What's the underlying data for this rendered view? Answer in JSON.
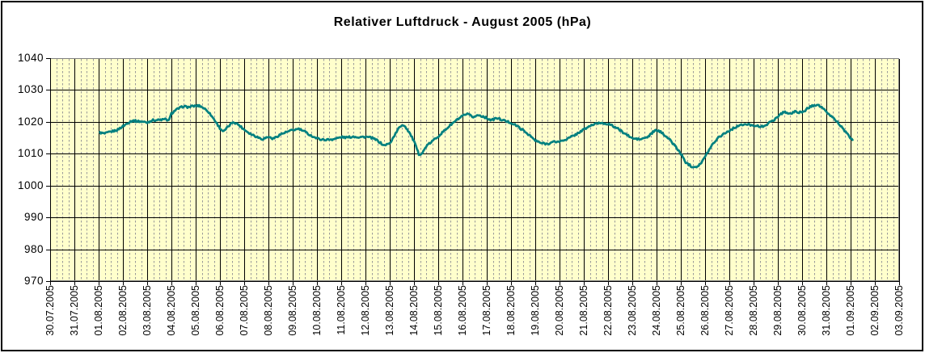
{
  "chart_data": {
    "type": "line",
    "title": "Relativer Luftdruck - August 2005 (hPa)",
    "xlabel": "",
    "ylabel": "",
    "ylim": [
      970,
      1040
    ],
    "y_ticks": [
      1040,
      1030,
      1020,
      1010,
      1000,
      990,
      980,
      970
    ],
    "x_tick_labels": [
      "30.07.2005",
      "31.07.2005",
      "01.08.2005",
      "02.08.2005",
      "03.08.2005",
      "04.08.2005",
      "05.08.2005",
      "06.08.2005",
      "07.08.2005",
      "08.08.2005",
      "09.08.2005",
      "10.08.2005",
      "11.08.2005",
      "12.08.2005",
      "13.08.2005",
      "14.08.2005",
      "15.08.2005",
      "16.08.2005",
      "17.08.2005",
      "18.08.2005",
      "19.08.2005",
      "20.08.2005",
      "21.08.2005",
      "22.08.2005",
      "23.08.2005",
      "24.08.2005",
      "25.08.2005",
      "26.08.2005",
      "27.08.2005",
      "28.08.2005",
      "29.08.2005",
      "30.08.2005",
      "31.08.2005",
      "01.09.2005",
      "02.09.2005",
      "03.09.2005"
    ],
    "x_minor_divisions_per_day": 4,
    "grid": "on",
    "legend": "none",
    "series": [
      {
        "name": "Relativer Luftdruck (hPa)",
        "color": "#008080",
        "x_unit": "day of August 2005 (decimal, 1.0 = 01.08.2005 00:00)",
        "visual_noise_hpa": 0.3,
        "points": [
          [
            1.05,
            1016.6
          ],
          [
            1.25,
            1016.3
          ],
          [
            1.5,
            1016.9
          ],
          [
            1.75,
            1017.4
          ],
          [
            2,
            1018.6
          ],
          [
            2.25,
            1019.9
          ],
          [
            2.4,
            1020.4
          ],
          [
            2.6,
            1020.2
          ],
          [
            2.75,
            1020.1
          ],
          [
            3,
            1019.8
          ],
          [
            3.2,
            1020.5
          ],
          [
            3.5,
            1020.6
          ],
          [
            3.75,
            1020.8
          ],
          [
            3.9,
            1020.4
          ],
          [
            4,
            1022.6
          ],
          [
            4.15,
            1023.6
          ],
          [
            4.3,
            1024.2
          ],
          [
            4.5,
            1024.9
          ],
          [
            4.7,
            1024.6
          ],
          [
            4.85,
            1024.9
          ],
          [
            5,
            1025
          ],
          [
            5.15,
            1025.1
          ],
          [
            5.3,
            1024.5
          ],
          [
            5.5,
            1023.4
          ],
          [
            5.75,
            1020.9
          ],
          [
            6,
            1018
          ],
          [
            6.15,
            1016.9
          ],
          [
            6.35,
            1018.6
          ],
          [
            6.55,
            1020
          ],
          [
            6.75,
            1019.2
          ],
          [
            7,
            1017.6
          ],
          [
            7.25,
            1016.3
          ],
          [
            7.5,
            1015.4
          ],
          [
            7.75,
            1014.6
          ],
          [
            8,
            1015.3
          ],
          [
            8.2,
            1014.7
          ],
          [
            8.5,
            1016.1
          ],
          [
            8.75,
            1016.8
          ],
          [
            9,
            1017.4
          ],
          [
            9.25,
            1017.8
          ],
          [
            9.5,
            1016.9
          ],
          [
            9.75,
            1015.7
          ],
          [
            10,
            1014.8
          ],
          [
            10.25,
            1014.4
          ],
          [
            10.5,
            1014.4
          ],
          [
            10.75,
            1014.7
          ],
          [
            11,
            1015.2
          ],
          [
            11.25,
            1015.1
          ],
          [
            11.5,
            1015.4
          ],
          [
            11.75,
            1015.2
          ],
          [
            12,
            1015.3
          ],
          [
            12.25,
            1015
          ],
          [
            12.5,
            1014.1
          ],
          [
            12.75,
            1012.6
          ],
          [
            13,
            1013.2
          ],
          [
            13.2,
            1015.8
          ],
          [
            13.4,
            1018.3
          ],
          [
            13.5,
            1019
          ],
          [
            13.6,
            1018.9
          ],
          [
            13.8,
            1016.8
          ],
          [
            14,
            1013.9
          ],
          [
            14.2,
            1009.8
          ],
          [
            14.35,
            1010.2
          ],
          [
            14.5,
            1012.3
          ],
          [
            14.75,
            1013.9
          ],
          [
            15,
            1015.5
          ],
          [
            15.25,
            1017.2
          ],
          [
            15.5,
            1019
          ],
          [
            15.75,
            1020.5
          ],
          [
            16,
            1021.8
          ],
          [
            16.2,
            1022.4
          ],
          [
            16.45,
            1021.5
          ],
          [
            16.65,
            1022.1
          ],
          [
            16.85,
            1021.7
          ],
          [
            17,
            1021.2
          ],
          [
            17.2,
            1020.5
          ],
          [
            17.4,
            1021.2
          ],
          [
            17.75,
            1020.3
          ],
          [
            18,
            1019.7
          ],
          [
            18.25,
            1018.7
          ],
          [
            18.5,
            1017.3
          ],
          [
            18.75,
            1015.9
          ],
          [
            19,
            1014.1
          ],
          [
            19.25,
            1013.3
          ],
          [
            19.5,
            1013.1
          ],
          [
            19.75,
            1013.7
          ],
          [
            20,
            1013.8
          ],
          [
            20.33,
            1014.7
          ],
          [
            20.66,
            1016
          ],
          [
            21,
            1017.6
          ],
          [
            21.33,
            1019
          ],
          [
            21.66,
            1019.7
          ],
          [
            22,
            1019.4
          ],
          [
            22.33,
            1018.2
          ],
          [
            22.66,
            1016.5
          ],
          [
            23,
            1014.8
          ],
          [
            23.33,
            1014.5
          ],
          [
            23.66,
            1015.3
          ],
          [
            23.85,
            1016.8
          ],
          [
            24,
            1017.4
          ],
          [
            24.25,
            1016.5
          ],
          [
            24.5,
            1014.7
          ],
          [
            24.75,
            1012.6
          ],
          [
            25,
            1010
          ],
          [
            25.2,
            1007.3
          ],
          [
            25.45,
            1006
          ],
          [
            25.65,
            1005.9
          ],
          [
            25.85,
            1007.2
          ],
          [
            26,
            1009
          ],
          [
            26.25,
            1012.4
          ],
          [
            26.5,
            1014.8
          ],
          [
            26.75,
            1016.2
          ],
          [
            27,
            1017.2
          ],
          [
            27.33,
            1018.7
          ],
          [
            27.66,
            1019.2
          ],
          [
            28,
            1019
          ],
          [
            28.3,
            1018.4
          ],
          [
            28.6,
            1019.4
          ],
          [
            28.9,
            1021
          ],
          [
            29,
            1021.7
          ],
          [
            29.25,
            1023.2
          ],
          [
            29.5,
            1022.5
          ],
          [
            29.75,
            1023.3
          ],
          [
            30,
            1022.8
          ],
          [
            30.25,
            1024.4
          ],
          [
            30.5,
            1025.3
          ],
          [
            30.65,
            1025.4
          ],
          [
            30.85,
            1024.3
          ],
          [
            31,
            1023
          ],
          [
            31.25,
            1021.5
          ],
          [
            31.5,
            1019.6
          ],
          [
            31.75,
            1017.2
          ],
          [
            32,
            1014.8
          ],
          [
            32.08,
            1014.3
          ]
        ]
      }
    ]
  },
  "colors": {
    "canvas_bg": "#ffffff",
    "outer_border": "#000000",
    "plot_bg": "#ffffcc",
    "plot_border": "#808080",
    "grid_major": "#000000",
    "grid_minor": "#999999",
    "axis": "#000000",
    "line": "#008080",
    "text": "#000000"
  }
}
